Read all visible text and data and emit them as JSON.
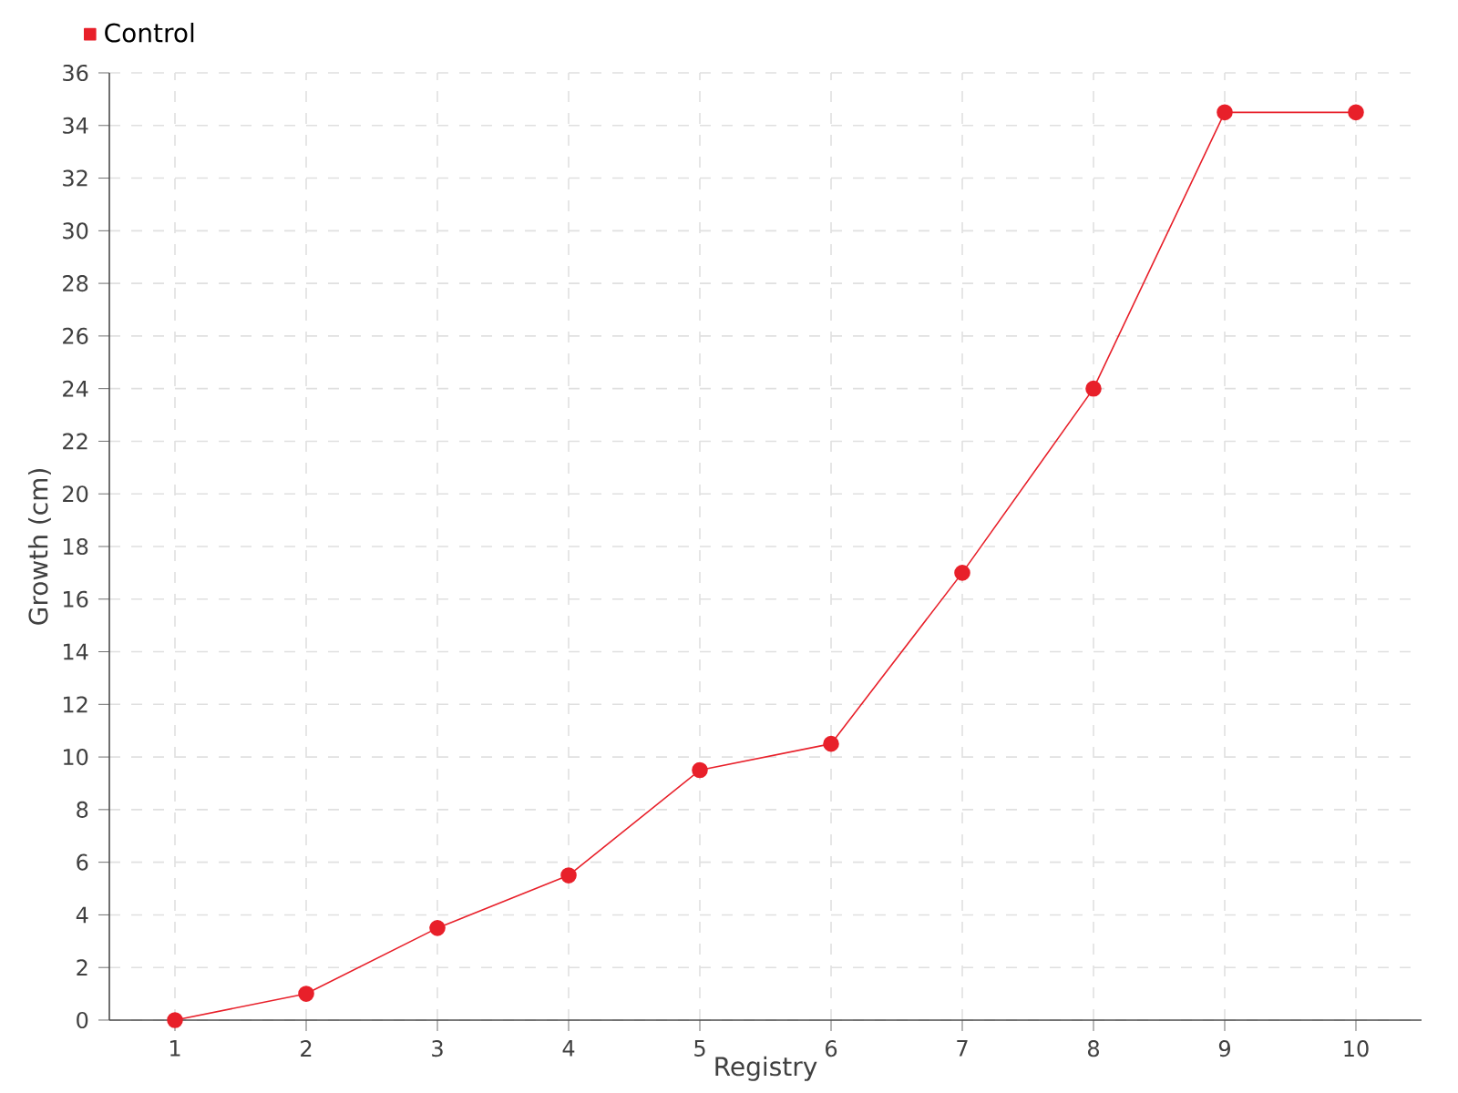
{
  "chart_data": {
    "type": "line",
    "xlabel": "Registry",
    "ylabel": "Growth (cm)",
    "categories": [
      "1",
      "2",
      "3",
      "4",
      "5",
      "6",
      "7",
      "8",
      "9",
      "10"
    ],
    "series": [
      {
        "name": "Control",
        "color": "#e8202a",
        "values": [
          0,
          1,
          3.5,
          5.5,
          9.5,
          10.5,
          17,
          24,
          34.5,
          34.5
        ]
      }
    ],
    "ylim": [
      0,
      36
    ],
    "yticks": [
      0,
      2,
      4,
      6,
      8,
      10,
      12,
      14,
      16,
      18,
      20,
      22,
      24,
      26,
      28,
      30,
      32,
      34,
      36
    ],
    "grid": true,
    "legend": "top left",
    "marker": "circle",
    "line_style": "solid"
  }
}
